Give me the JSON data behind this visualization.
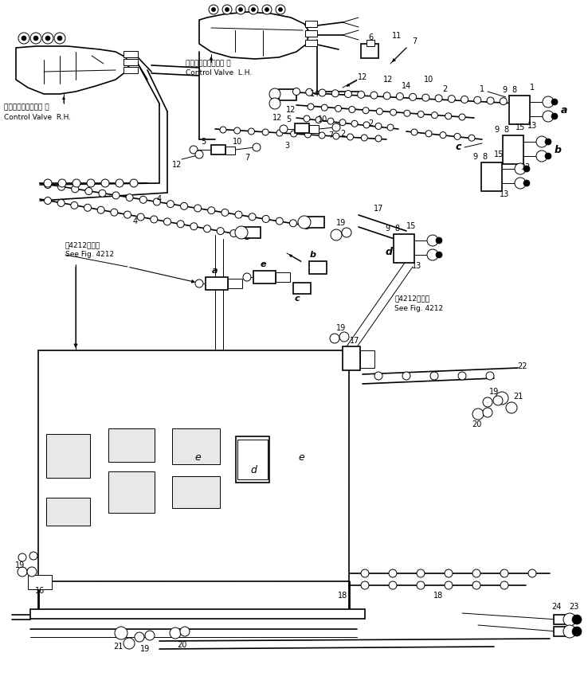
{
  "bg_color": "#ffffff",
  "line_color": "#000000",
  "figsize": [
    7.38,
    8.69
  ],
  "dpi": 100,
  "labels": {
    "control_valve_rh_jp": "コントロールバルブ 右",
    "control_valve_rh_en": "Control Valve  R.H.",
    "control_valve_lh_jp": "コントロールバルブ 左",
    "control_valve_lh_en": "Control Valve  L.H.",
    "see_fig_4212_jp1": "笥4212図参照",
    "see_fig_4212_en1": "See Fig. 4212",
    "see_fig_4212_jp2": "笥4212図参照",
    "see_fig_4212_en2": "See Fig. 4212"
  }
}
